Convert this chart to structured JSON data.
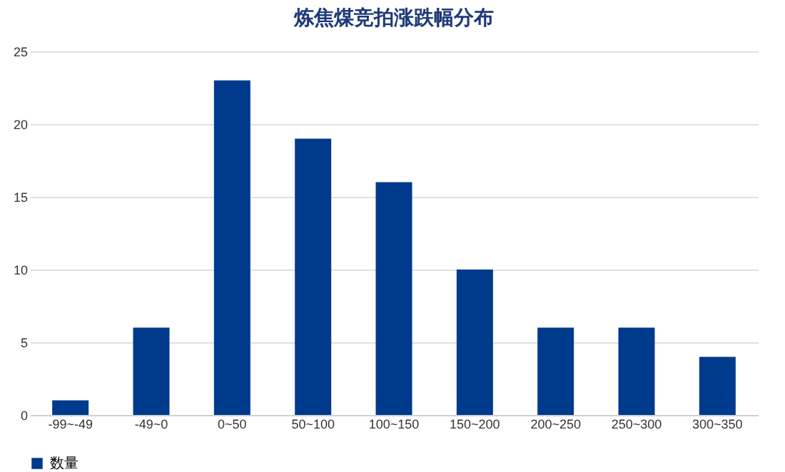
{
  "chart_data": {
    "type": "bar",
    "title": "炼焦煤竞拍涨跌幅分布",
    "categories": [
      "-99~-49",
      "-49~0",
      "0~50",
      "50~100",
      "100~150",
      "150~200",
      "200~250",
      "250~300",
      "300~350"
    ],
    "series": [
      {
        "name": "数量",
        "color": "#003a8c",
        "values": [
          1,
          6,
          23,
          19,
          16,
          10,
          6,
          6,
          4
        ]
      }
    ],
    "ylim": [
      0,
      25
    ],
    "yticks": [
      0,
      5,
      10,
      15,
      20,
      25
    ],
    "grid": "y",
    "legend": "bottom"
  }
}
